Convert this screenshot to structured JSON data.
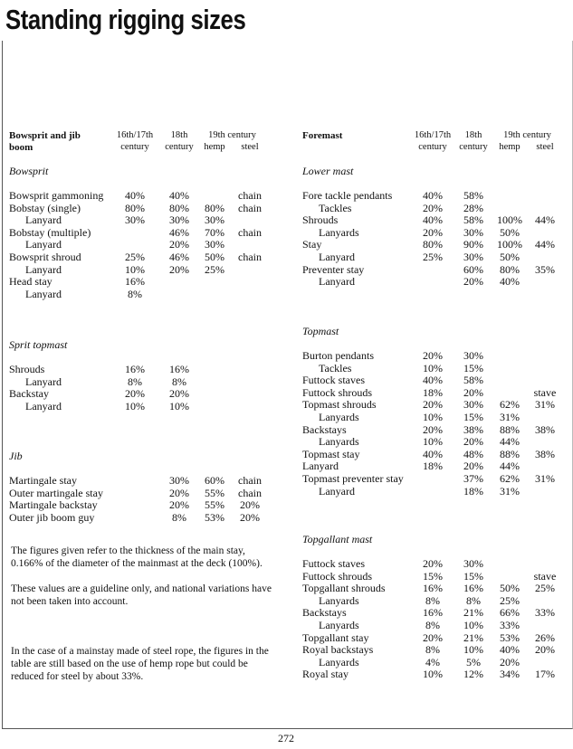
{
  "title": "Standing rigging sizes",
  "tables": [
    {
      "header": {
        "label": "Bowsprit and jib boom",
        "cols": [
          "16th/17th century",
          "18th century",
          "19th century",
          "hemp",
          "steel"
        ]
      },
      "sections": [
        {
          "name": "Bowsprit",
          "rows": [
            {
              "name": "Bowsprit gammoning",
              "cells": [
                "40%",
                "40%",
                null,
                "chain"
              ]
            },
            {
              "name": "Bobstay (single)",
              "cells": [
                "80%",
                "80%",
                "80%",
                "chain"
              ]
            },
            {
              "name": "Lanyard",
              "indent": true,
              "cells": [
                "30%",
                "30%",
                "30%",
                null
              ]
            },
            {
              "name": "Bobstay (multiple)",
              "cells": [
                null,
                "46%",
                "70%",
                "chain"
              ]
            },
            {
              "name": "Lanyard",
              "indent": true,
              "cells": [
                null,
                "20%",
                "30%",
                null
              ]
            },
            {
              "name": "Bowsprit shroud",
              "cells": [
                "25%",
                "46%",
                "50%",
                "chain"
              ]
            },
            {
              "name": "Lanyard",
              "indent": true,
              "cells": [
                "10%",
                "20%",
                "25%",
                null
              ]
            },
            {
              "name": "Head stay",
              "cells": [
                "16%",
                null,
                null,
                null
              ]
            },
            {
              "name": "Lanyard",
              "indent": true,
              "cells": [
                "8%",
                null,
                null,
                null
              ]
            }
          ]
        },
        {
          "name": "Sprit topmast",
          "rows": [
            {
              "name": "Shrouds",
              "cells": [
                "16%",
                "16%",
                null,
                null
              ]
            },
            {
              "name": "Lanyard",
              "indent": true,
              "cells": [
                "8%",
                "8%",
                null,
                null
              ]
            },
            {
              "name": "Backstay",
              "cells": [
                "20%",
                "20%",
                null,
                null
              ]
            },
            {
              "name": "Lanyard",
              "indent": true,
              "cells": [
                "10%",
                "10%",
                null,
                null
              ]
            }
          ]
        },
        {
          "name": "Jib",
          "rows": [
            {
              "name": "Martingale stay",
              "cells": [
                null,
                "30%",
                "60%",
                "chain"
              ]
            },
            {
              "name": "Outer martingale stay",
              "cells": [
                null,
                "20%",
                "55%",
                "chain"
              ]
            },
            {
              "name": "Martingale backstay",
              "cells": [
                null,
                "20%",
                "55%",
                "20%"
              ]
            },
            {
              "name": "Outer jib boom guy",
              "cells": [
                null,
                "8%",
                "53%",
                "20%"
              ]
            }
          ]
        }
      ]
    },
    {
      "header": {
        "label": "Foremast",
        "cols": [
          "16th/17th century",
          "18th century",
          "19th century",
          "hemp",
          "steel"
        ]
      },
      "sections": [
        {
          "name": "Lower mast",
          "rows": [
            {
              "name": "Fore tackle pendants",
              "cells": [
                "40%",
                "58%",
                null,
                null
              ]
            },
            {
              "name": "Tackles",
              "indent": true,
              "cells": [
                "20%",
                "28%",
                null,
                null
              ]
            },
            {
              "name": "Shrouds",
              "cells": [
                "40%",
                "58%",
                "100%",
                "44%"
              ]
            },
            {
              "name": "Lanyards",
              "indent": true,
              "cells": [
                "20%",
                "30%",
                "50%",
                null
              ]
            },
            {
              "name": "Stay",
              "cells": [
                "80%",
                "90%",
                "100%",
                "44%"
              ]
            },
            {
              "name": "Lanyard",
              "indent": true,
              "cells": [
                "25%",
                "30%",
                "50%",
                null
              ]
            },
            {
              "name": "Preventer stay",
              "cells": [
                null,
                "60%",
                "80%",
                "35%"
              ]
            },
            {
              "name": "Lanyard",
              "indent": true,
              "cells": [
                null,
                "20%",
                "40%",
                null
              ]
            }
          ]
        },
        {
          "name": "Topmast",
          "rows": [
            {
              "name": "Burton pendants",
              "cells": [
                "20%",
                "30%",
                null,
                null
              ]
            },
            {
              "name": "Tackles",
              "indent": true,
              "cells": [
                "10%",
                "15%",
                null,
                null
              ]
            },
            {
              "name": "Futtock staves",
              "cells": [
                "40%",
                "58%",
                null,
                null
              ]
            },
            {
              "name": "Futtock shrouds",
              "cells": [
                "18%",
                "20%",
                null,
                "stave"
              ]
            },
            {
              "name": "Topmast shrouds",
              "cells": [
                "20%",
                "30%",
                "62%",
                "31%"
              ]
            },
            {
              "name": "Lanyards",
              "indent": true,
              "cells": [
                "10%",
                "15%",
                "31%",
                null
              ]
            },
            {
              "name": "Backstays",
              "cells": [
                "20%",
                "38%",
                "88%",
                "38%"
              ]
            },
            {
              "name": "Lanyards",
              "indent": true,
              "cells": [
                "10%",
                "20%",
                "44%",
                null
              ]
            },
            {
              "name": "Topmast stay",
              "cells": [
                "40%",
                "48%",
                "88%",
                "38%"
              ]
            },
            {
              "name": "Lanyard",
              "cells": [
                "18%",
                "20%",
                "44%",
                null
              ]
            },
            {
              "name": "Topmast preventer stay",
              "cells": [
                null,
                "37%",
                "62%",
                "31%"
              ]
            },
            {
              "name": "Lanyard",
              "indent": true,
              "cells": [
                null,
                "18%",
                "31%",
                null
              ]
            }
          ]
        },
        {
          "name": "Topgallant mast",
          "rows": [
            {
              "name": "Futtock staves",
              "cells": [
                "20%",
                "30%",
                null,
                null
              ]
            },
            {
              "name": "Futtock shrouds",
              "cells": [
                "15%",
                "15%",
                null,
                "stave"
              ]
            },
            {
              "name": "Topgallant shrouds",
              "cells": [
                "16%",
                "16%",
                "50%",
                "25%"
              ]
            },
            {
              "name": "Lanyards",
              "indent": true,
              "cells": [
                "8%",
                "8%",
                "25%",
                null
              ]
            },
            {
              "name": "Backstays",
              "cells": [
                "16%",
                "21%",
                "66%",
                "33%"
              ]
            },
            {
              "name": "Lanyards",
              "indent": true,
              "cells": [
                "8%",
                "10%",
                "33%",
                null
              ]
            },
            {
              "name": "Topgallant stay",
              "cells": [
                "20%",
                "21%",
                "53%",
                "26%"
              ]
            },
            {
              "name": "Royal backstays",
              "cells": [
                "8%",
                "10%",
                "40%",
                "20%"
              ]
            },
            {
              "name": "Lanyards",
              "indent": true,
              "cells": [
                "4%",
                "5%",
                "20%",
                null
              ]
            },
            {
              "name": "Royal stay",
              "cells": [
                "10%",
                "12%",
                "34%",
                "17%"
              ]
            }
          ]
        }
      ]
    }
  ],
  "notes": [
    "The figures given refer to the thickness of the main stay, 0.166% of the diameter of the mainmast at the deck (100%).",
    "These values are a guideline only, and national variations have not been taken into account.",
    "In the case of a mainstay made of steel rope, the figures in the table are still based on the use of hemp rope but could be reduced for steel by about 33%."
  ],
  "page_number": "272"
}
